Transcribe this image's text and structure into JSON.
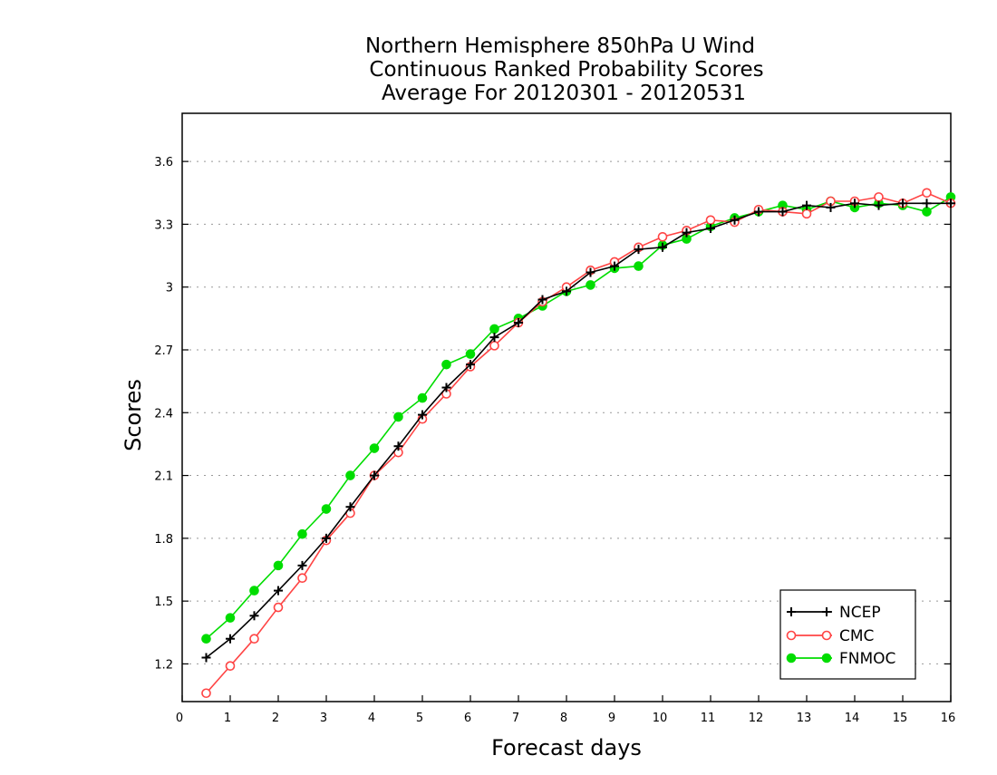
{
  "chart_data": {
    "type": "line",
    "title": [
      "Northern Hemisphere 850hPa U Wind",
      "Continuous Ranked Probability Scores",
      "Average For 20120301 - 20120531"
    ],
    "xlabel": "Forecast days",
    "ylabel": "Scores",
    "xlim": [
      0,
      16
    ],
    "ylim": [
      1.02,
      3.83
    ],
    "x_ticks": [
      0,
      1,
      2,
      3,
      4,
      5,
      6,
      7,
      8,
      9,
      10,
      11,
      12,
      13,
      14,
      15,
      16
    ],
    "x_tick_labels": [
      "0",
      "1",
      "2",
      "3",
      "4",
      "5",
      "6",
      "7",
      "8",
      "9",
      "10",
      "11",
      "12",
      "13",
      "14",
      "15",
      "16"
    ],
    "y_ticks": [
      1.2,
      1.5,
      1.8,
      2.1,
      2.4,
      2.7,
      3.0,
      3.3,
      3.6
    ],
    "y_tick_labels": [
      "1.2",
      "1.5",
      "1.8",
      "2.1",
      "2.4",
      "2.7",
      "3",
      "3.3",
      "3.6"
    ],
    "grid": "horizontal dotted",
    "legend_position": "bottom-right",
    "x": [
      0.5,
      1.0,
      1.5,
      2.0,
      2.5,
      3.0,
      3.5,
      4.0,
      4.5,
      5.0,
      5.5,
      6.0,
      6.5,
      7.0,
      7.5,
      8.0,
      8.5,
      9.0,
      9.5,
      10.0,
      10.5,
      11.0,
      11.5,
      12.0,
      12.5,
      13.0,
      13.5,
      14.0,
      14.5,
      15.0,
      15.5,
      16.0
    ],
    "series": [
      {
        "name": "NCEP",
        "color": "#000000",
        "marker": "plus",
        "values": [
          1.23,
          1.32,
          1.43,
          1.55,
          1.67,
          1.8,
          1.95,
          2.1,
          2.24,
          2.39,
          2.52,
          2.63,
          2.76,
          2.83,
          2.94,
          2.98,
          3.07,
          3.1,
          3.18,
          3.19,
          3.26,
          3.28,
          3.32,
          3.36,
          3.36,
          3.39,
          3.38,
          3.4,
          3.39,
          3.4,
          3.4,
          3.4
        ]
      },
      {
        "name": "CMC",
        "color": "#ff4444",
        "marker": "open-circle",
        "values": [
          1.06,
          1.19,
          1.32,
          1.47,
          1.61,
          1.79,
          1.92,
          2.1,
          2.21,
          2.37,
          2.49,
          2.62,
          2.72,
          2.83,
          2.93,
          3.0,
          3.08,
          3.12,
          3.19,
          3.24,
          3.27,
          3.32,
          3.31,
          3.37,
          3.36,
          3.35,
          3.41,
          3.41,
          3.43,
          3.4,
          3.45,
          3.4
        ]
      },
      {
        "name": "FNMOC",
        "color": "#00dd00",
        "marker": "filled-circle",
        "values": [
          1.32,
          1.42,
          1.55,
          1.67,
          1.82,
          1.94,
          2.1,
          2.23,
          2.38,
          2.47,
          2.63,
          2.68,
          2.8,
          2.85,
          2.91,
          2.98,
          3.01,
          3.09,
          3.1,
          3.2,
          3.23,
          3.29,
          3.33,
          3.36,
          3.39,
          3.37,
          3.41,
          3.38,
          3.4,
          3.39,
          3.36,
          3.43
        ]
      }
    ]
  }
}
